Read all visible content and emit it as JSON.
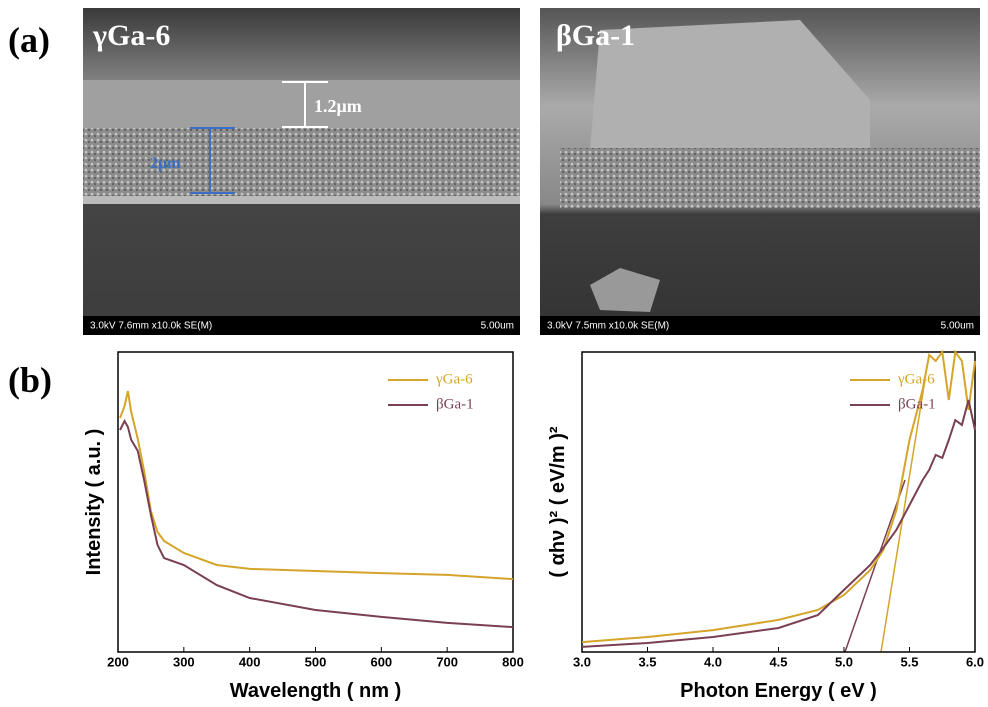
{
  "panel_labels": [
    "(a)",
    "(b)"
  ],
  "sem_images": [
    {
      "sample": "γGa-6",
      "scale_marks": [
        "1.2μm",
        "2μm"
      ],
      "info": "3.0kV 7.6mm x10.0k SE(M)",
      "scale": "5.00um"
    },
    {
      "sample": "βGa-1",
      "info": "3.0kV 7.5mm x10.0k SE(M)",
      "scale": "5.00um"
    }
  ],
  "chart_data": [
    {
      "type": "line",
      "xlabel": "Wavelength ( nm )",
      "ylabel": "Intensity ( a.u. )",
      "x": [
        203,
        210,
        215,
        220,
        230,
        240,
        250,
        260,
        270,
        300,
        350,
        400,
        500,
        600,
        700,
        800
      ],
      "series": [
        {
          "name": "γGa-6",
          "color": "#d4a52a",
          "values": [
            78,
            82,
            87,
            80,
            71,
            60,
            47,
            40,
            37,
            33,
            29,
            27.7,
            27,
            26.3,
            25.7,
            24.3
          ]
        },
        {
          "name": "βGa-1",
          "color": "#7b3f52",
          "values": [
            74,
            77,
            75,
            70.7,
            67,
            57,
            45.7,
            35.7,
            31.3,
            29,
            22.3,
            18,
            14,
            11.7,
            9.7,
            8.3
          ]
        }
      ],
      "xlim": [
        200,
        800
      ],
      "xticks": [
        200,
        300,
        400,
        500,
        600,
        700,
        800
      ],
      "ylim": [
        0,
        100
      ],
      "legend": "upper right"
    },
    {
      "type": "line",
      "xlabel": "Photon Energy ( eV )",
      "ylabel": "( αhν )² ( eV/m )²",
      "x": [
        3.0,
        3.5,
        4.0,
        4.5,
        4.8,
        5.0,
        5.2,
        5.3,
        5.4,
        5.5,
        5.6,
        5.65,
        5.7,
        5.75,
        5.8,
        5.85,
        5.9,
        5.95,
        6.0
      ],
      "series": [
        {
          "name": "γGa-6",
          "color": "#d4a52a",
          "values": [
            3.3,
            5,
            7.3,
            10.7,
            14,
            19,
            27.3,
            34,
            47.3,
            70.7,
            87.3,
            99,
            97,
            100,
            84,
            100,
            97,
            80.7,
            97
          ]
        },
        {
          "name": "βGa-1",
          "color": "#7b3f52",
          "values": [
            1.7,
            3,
            5,
            8,
            12.3,
            20.7,
            29,
            34.7,
            40.7,
            49,
            57.3,
            60.7,
            65.7,
            64.7,
            70.7,
            77.3,
            75.7,
            84,
            74
          ]
        }
      ],
      "xlim": [
        3,
        6
      ],
      "xticks": [
        {
          "value": 3,
          "label": "3.0"
        },
        3.5,
        {
          "value": 4,
          "label": "4.0"
        },
        4.5,
        {
          "value": 5,
          "label": "5.0"
        },
        5.5,
        {
          "value": 6,
          "label": "6.0"
        }
      ],
      "ylim": [
        0,
        100
      ],
      "legend": "upper right"
    }
  ]
}
